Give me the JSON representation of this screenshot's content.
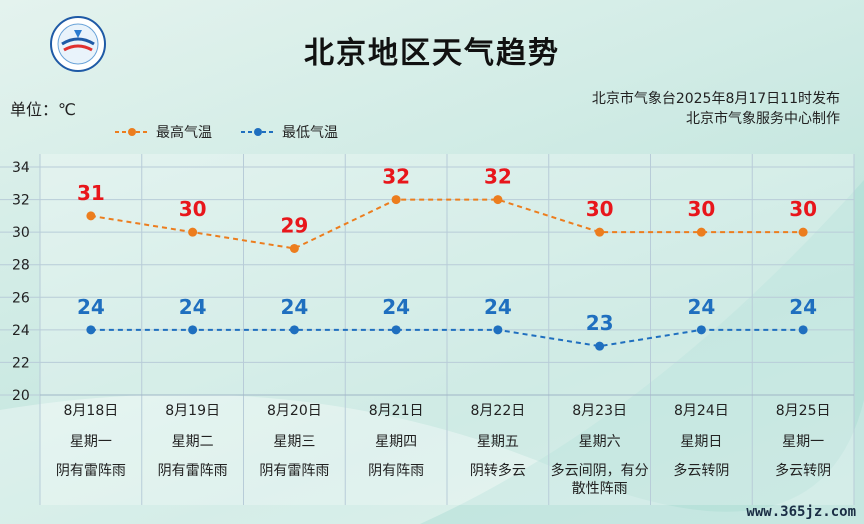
{
  "title": "北京地区天气趋势",
  "unit_label": "单位：℃",
  "credits": [
    "北京市气象台2025年8月17日11时发布",
    "北京市气象服务中心制作"
  ],
  "watermark": "www.365jz.com",
  "logo": {
    "icon": "meteorological-service-logo",
    "text": "METEOROLOGICAL SERVICE"
  },
  "colors": {
    "high": "#ec7d1e",
    "low": "#1f6fbf",
    "high_label": "#e8161b",
    "low_label": "#1f6fbf"
  },
  "chart_data": {
    "type": "line",
    "title": "北京地区天气趋势",
    "ylabel": "单位：℃",
    "ylim": [
      20,
      34
    ],
    "yticks": [
      20,
      22,
      24,
      26,
      28,
      30,
      32,
      34
    ],
    "grid": true,
    "legend_position": "top-left",
    "categories": [
      "8月18日",
      "8月19日",
      "8月20日",
      "8月21日",
      "8月22日",
      "8月23日",
      "8月24日",
      "8月25日"
    ],
    "weekdays": [
      "星期一",
      "星期二",
      "星期三",
      "星期四",
      "星期五",
      "星期六",
      "星期日",
      "星期一"
    ],
    "weather": [
      "阴有雷阵雨",
      "阴有雷阵雨",
      "阴有雷阵雨",
      "阴有阵雨",
      "阴转多云",
      "多云间阴，有分散性阵雨",
      "多云转阴",
      "多云转阴"
    ],
    "series": [
      {
        "name": "最高气温",
        "values": [
          31,
          30,
          29,
          32,
          32,
          30,
          30,
          30
        ]
      },
      {
        "name": "最低气温",
        "values": [
          24,
          24,
          24,
          24,
          24,
          23,
          24,
          24
        ]
      }
    ]
  }
}
